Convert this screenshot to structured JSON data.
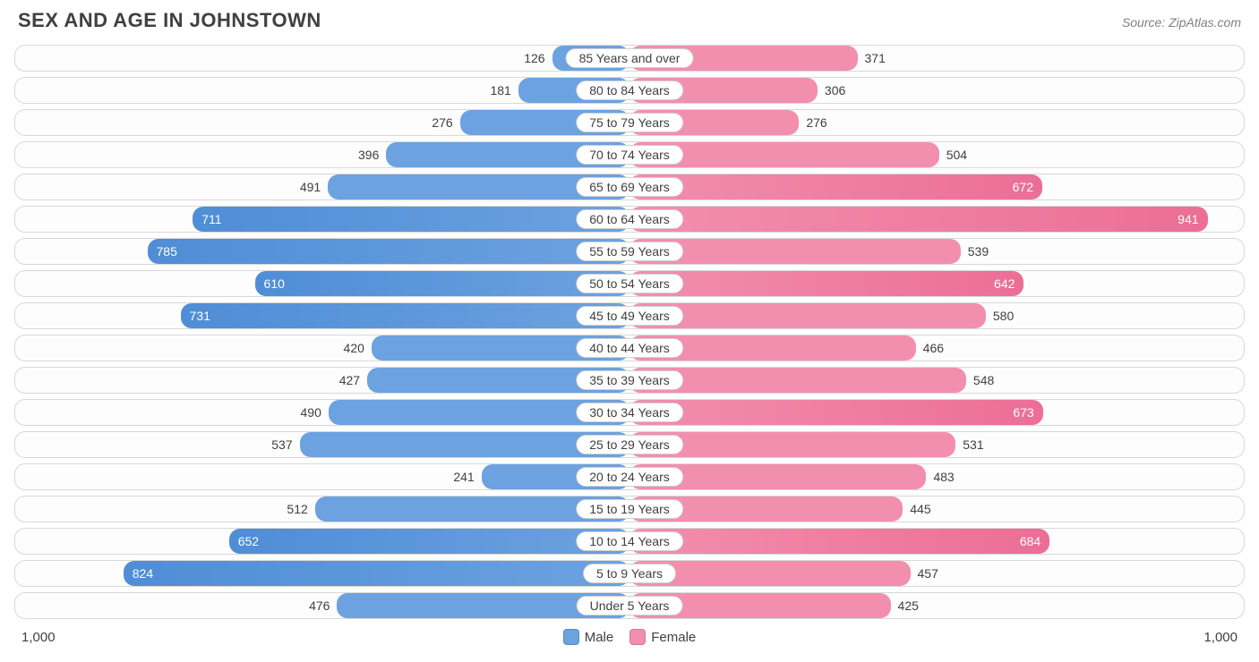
{
  "title": "SEX AND AGE IN JOHNSTOWN",
  "source": "Source: ZipAtlas.com",
  "chart": {
    "type": "diverging-bar",
    "max_value": 1000,
    "axis_label_left": "1,000",
    "axis_label_right": "1,000",
    "male_color": "#6ca2e0",
    "male_color_dark": "#4f8dd6",
    "female_color": "#f28fae",
    "female_color_dark": "#ec6e96",
    "background_color": "#ffffff",
    "row_border_color": "#d8d8d8",
    "text_color": "#404040",
    "inside_threshold": 600,
    "title_fontsize": 22,
    "label_fontsize": 14,
    "legend": [
      {
        "label": "Male",
        "color": "#6ca2e0"
      },
      {
        "label": "Female",
        "color": "#f28fae"
      }
    ],
    "rows": [
      {
        "category": "85 Years and over",
        "male": 126,
        "female": 371
      },
      {
        "category": "80 to 84 Years",
        "male": 181,
        "female": 306
      },
      {
        "category": "75 to 79 Years",
        "male": 276,
        "female": 276
      },
      {
        "category": "70 to 74 Years",
        "male": 396,
        "female": 504
      },
      {
        "category": "65 to 69 Years",
        "male": 491,
        "female": 672
      },
      {
        "category": "60 to 64 Years",
        "male": 711,
        "female": 941
      },
      {
        "category": "55 to 59 Years",
        "male": 785,
        "female": 539
      },
      {
        "category": "50 to 54 Years",
        "male": 610,
        "female": 642
      },
      {
        "category": "45 to 49 Years",
        "male": 731,
        "female": 580
      },
      {
        "category": "40 to 44 Years",
        "male": 420,
        "female": 466
      },
      {
        "category": "35 to 39 Years",
        "male": 427,
        "female": 548
      },
      {
        "category": "30 to 34 Years",
        "male": 490,
        "female": 673
      },
      {
        "category": "25 to 29 Years",
        "male": 537,
        "female": 531
      },
      {
        "category": "20 to 24 Years",
        "male": 241,
        "female": 483
      },
      {
        "category": "15 to 19 Years",
        "male": 512,
        "female": 445
      },
      {
        "category": "10 to 14 Years",
        "male": 652,
        "female": 684
      },
      {
        "category": "5 to 9 Years",
        "male": 824,
        "female": 457
      },
      {
        "category": "Under 5 Years",
        "male": 476,
        "female": 425
      }
    ]
  }
}
